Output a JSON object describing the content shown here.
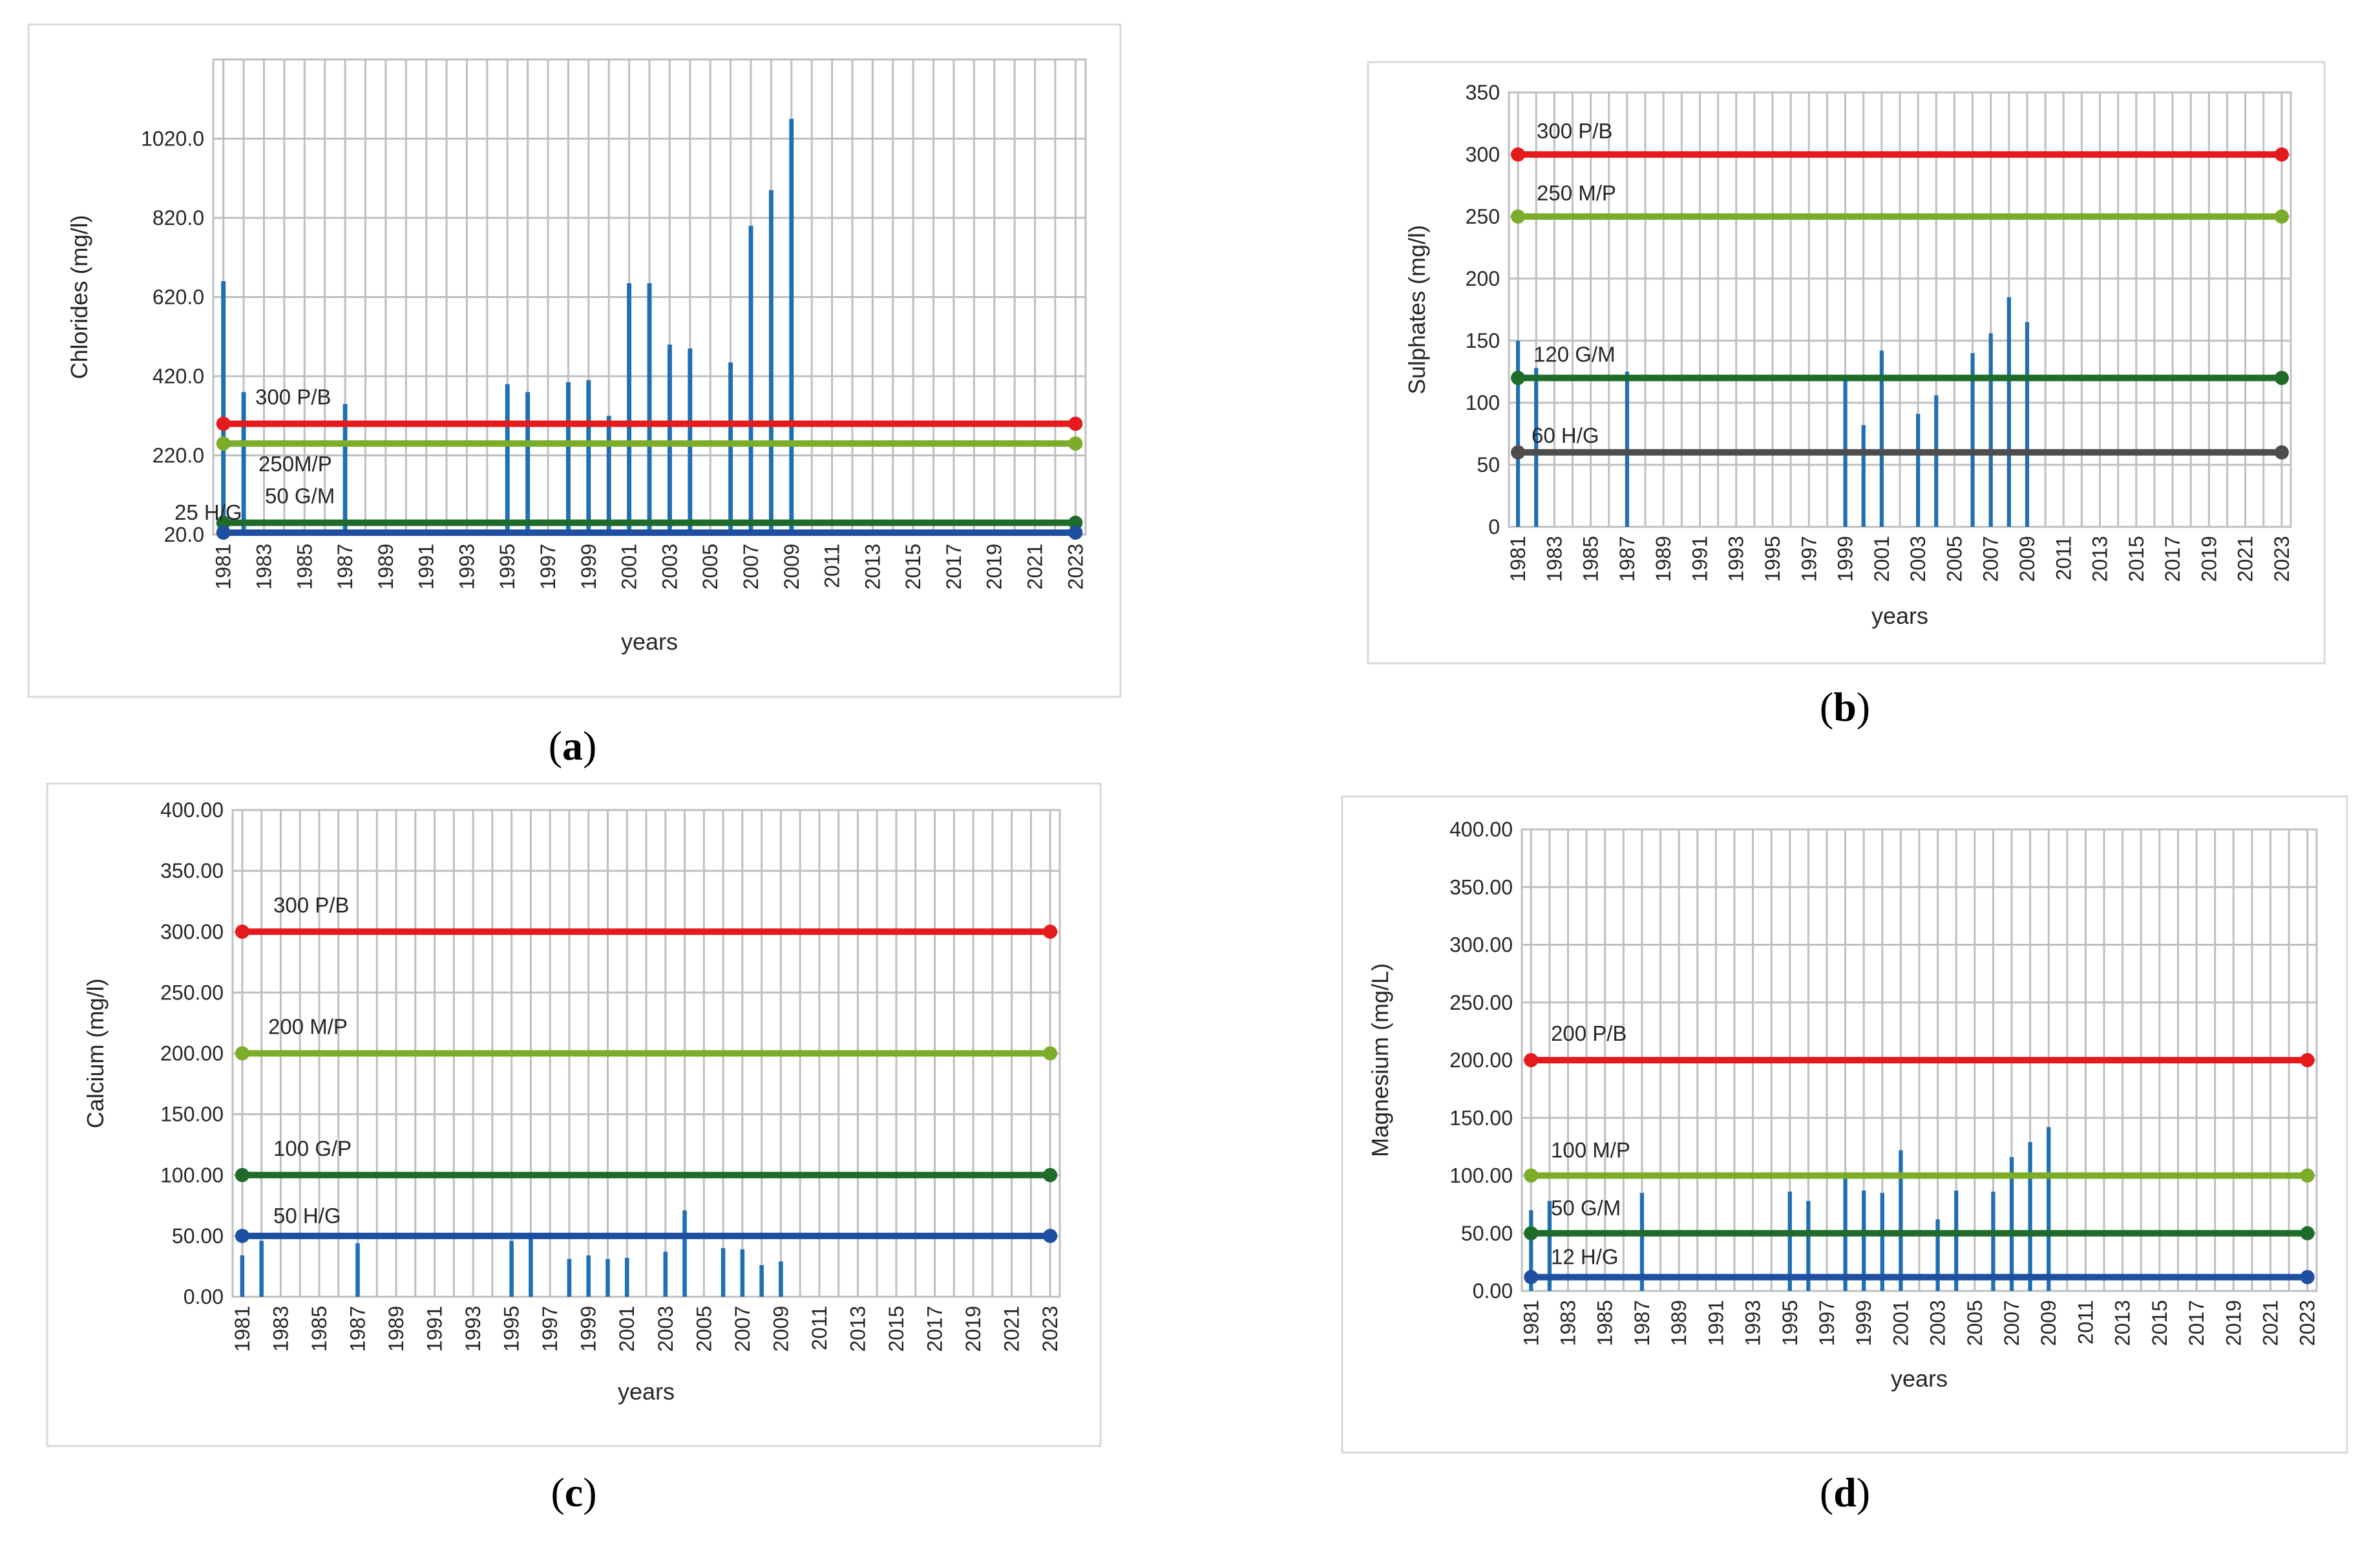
{
  "figure": {
    "panels": [
      "a",
      "b",
      "c",
      "d"
    ]
  },
  "chart_data": [
    {
      "id": "a",
      "type": "bar",
      "caption_letter": "a",
      "title": "",
      "xlabel": "years",
      "ylabel": "Chlorides (mg/l)",
      "ylim": [
        20,
        1220
      ],
      "y_ticks": [
        "20.0",
        "220.0",
        "420.0",
        "620.0",
        "820.0",
        "1020.0"
      ],
      "y_tick_values": [
        20,
        220,
        420,
        620,
        820,
        1020
      ],
      "x_ticks": [
        "1981",
        "1983",
        "1985",
        "1987",
        "1989",
        "1991",
        "1993",
        "1995",
        "1997",
        "1999",
        "2001",
        "2003",
        "2005",
        "2007",
        "2009",
        "2011",
        "2013",
        "2015",
        "2017",
        "2019",
        "2021",
        "2023"
      ],
      "xlim": [
        1980.5,
        2023.5
      ],
      "bar_color": "#1f6fb2",
      "series": [
        {
          "name": "Chlorides",
          "x": [
            1981,
            1982,
            1987,
            1995,
            1996,
            1998,
            1999,
            2000,
            2001,
            2002,
            2003,
            2004,
            2006,
            2007,
            2008,
            2009
          ],
          "values": [
            660,
            380,
            350,
            400,
            380,
            405,
            410,
            320,
            655,
            655,
            500,
            490,
            455,
            800,
            890,
            1070
          ]
        }
      ],
      "thresholds": [
        {
          "label": "300  P/B",
          "value": 300,
          "color": "#e41a1c"
        },
        {
          "label": "250M/P",
          "value": 250,
          "color": "#7cad2a"
        },
        {
          "label": "50 G/M",
          "value": 50,
          "color": "#1e6b2a"
        },
        {
          "label": "25 H/G",
          "value": 25,
          "color": "#1f4fa0"
        }
      ]
    },
    {
      "id": "b",
      "type": "bar",
      "caption_letter": "b",
      "title": "",
      "xlabel": "years",
      "ylabel": "Sulphates (mg/l)",
      "ylim": [
        0,
        350
      ],
      "y_ticks": [
        "0",
        "50",
        "100",
        "150",
        "200",
        "250",
        "300",
        "350"
      ],
      "y_tick_values": [
        0,
        50,
        100,
        150,
        200,
        250,
        300,
        350
      ],
      "x_ticks": [
        "1981",
        "1983",
        "1985",
        "1987",
        "1989",
        "1991",
        "1993",
        "1995",
        "1997",
        "1999",
        "2001",
        "2003",
        "2005",
        "2007",
        "2009",
        "2011",
        "2013",
        "2015",
        "2017",
        "2019",
        "2021",
        "2023"
      ],
      "xlim": [
        1980.5,
        2023.5
      ],
      "bar_color": "#1f6fb2",
      "series": [
        {
          "name": "Sulphates",
          "x": [
            1981,
            1982,
            1987,
            1999,
            2000,
            2001,
            2003,
            2004,
            2006,
            2007,
            2008,
            2009
          ],
          "values": [
            150,
            128,
            125,
            120,
            82,
            142,
            91,
            106,
            140,
            156,
            185,
            165
          ]
        }
      ],
      "thresholds": [
        {
          "label": "300 P/B",
          "value": 300,
          "color": "#e41a1c"
        },
        {
          "label": "250  M/P",
          "value": 250,
          "color": "#7cad2a"
        },
        {
          "label": "120 G/M",
          "value": 120,
          "color": "#1e6b2a"
        },
        {
          "label": "60 H/G",
          "value": 60,
          "color": "#4d4d4d"
        }
      ]
    },
    {
      "id": "c",
      "type": "bar",
      "caption_letter": "c",
      "title": "",
      "xlabel": "years",
      "ylabel": "Calcium (mg/l)",
      "ylim": [
        0,
        400
      ],
      "y_ticks": [
        "0.00",
        "50.00",
        "100.00",
        "150.00",
        "200.00",
        "250.00",
        "300.00",
        "350.00",
        "400.00"
      ],
      "y_tick_values": [
        0,
        50,
        100,
        150,
        200,
        250,
        300,
        350,
        400
      ],
      "x_ticks": [
        "1981",
        "1983",
        "1985",
        "1987",
        "1989",
        "1991",
        "1993",
        "1995",
        "1997",
        "1999",
        "2001",
        "2003",
        "2005",
        "2007",
        "2009",
        "2011",
        "2013",
        "2015",
        "2017",
        "2019",
        "2021",
        "2023"
      ],
      "xlim": [
        1980.5,
        2023.5
      ],
      "bar_color": "#1f6fb2",
      "series": [
        {
          "name": "Calcium",
          "x": [
            1981,
            1982,
            1987,
            1995,
            1996,
            1998,
            1999,
            2000,
            2001,
            2003,
            2004,
            2006,
            2007,
            2008,
            2009
          ],
          "values": [
            34,
            46,
            44,
            46,
            48,
            31,
            34,
            31,
            32,
            37,
            71,
            40,
            39,
            26,
            29
          ]
        }
      ],
      "thresholds": [
        {
          "label": "300 P/B",
          "value": 300,
          "color": "#e41a1c"
        },
        {
          "label": "200 M/P",
          "value": 200,
          "color": "#7cad2a"
        },
        {
          "label": "100 G/P",
          "value": 100,
          "color": "#1e6b2a"
        },
        {
          "label": "50 H/G",
          "value": 50,
          "color": "#1f4fa0"
        }
      ]
    },
    {
      "id": "d",
      "type": "bar",
      "caption_letter": "d",
      "title": "",
      "xlabel": "years",
      "ylabel": "Magnesium (mg/L)",
      "ylim": [
        0,
        400
      ],
      "y_ticks": [
        "0.00",
        "50.00",
        "100.00",
        "150.00",
        "200.00",
        "250.00",
        "300.00",
        "350.00",
        "400.00"
      ],
      "y_tick_values": [
        0,
        50,
        100,
        150,
        200,
        250,
        300,
        350,
        400
      ],
      "x_ticks": [
        "1981",
        "1983",
        "1985",
        "1987",
        "1989",
        "1991",
        "1993",
        "1995",
        "1997",
        "1999",
        "2001",
        "2003",
        "2005",
        "2007",
        "2009",
        "2011",
        "2013",
        "2015",
        "2017",
        "2019",
        "2021",
        "2023"
      ],
      "xlim": [
        1980.5,
        2023.5
      ],
      "bar_color": "#1f6fb2",
      "series": [
        {
          "name": "Magnesium",
          "x": [
            1981,
            1982,
            1987,
            1995,
            1996,
            1998,
            1999,
            2000,
            2001,
            2003,
            2004,
            2006,
            2007,
            2008,
            2009
          ],
          "values": [
            70,
            78,
            85,
            86,
            78,
            100,
            87,
            85,
            122,
            62,
            87,
            86,
            116,
            129,
            142
          ]
        }
      ],
      "thresholds": [
        {
          "label": "200 P/B",
          "value": 200,
          "color": "#e41a1c"
        },
        {
          "label": "100 M/P",
          "value": 100,
          "color": "#7cad2a"
        },
        {
          "label": "50 G/M",
          "value": 50,
          "color": "#1e6b2a"
        },
        {
          "label": "12 H/G",
          "value": 12,
          "color": "#1f4fa0"
        }
      ]
    }
  ]
}
